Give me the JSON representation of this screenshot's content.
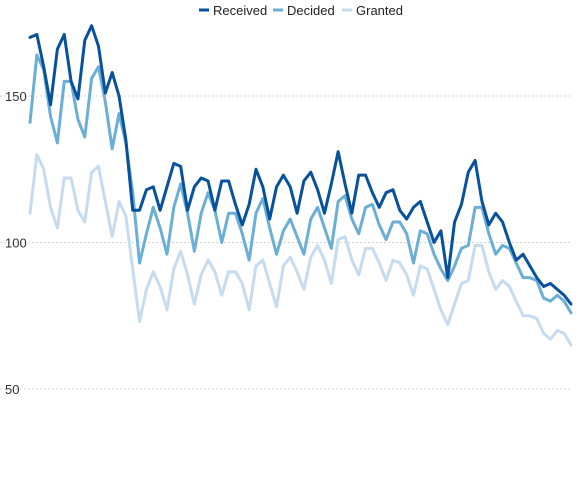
{
  "chart_data": {
    "type": "line",
    "title": "",
    "xlabel": "",
    "ylabel": "",
    "ylim": [
      50,
      180
    ],
    "yticks": [
      50,
      100,
      150
    ],
    "grid": true,
    "legend_position": "top",
    "series": [
      {
        "name": "Received",
        "color": "#08519c",
        "values": [
          170,
          171,
          160,
          147,
          166,
          171,
          155,
          149,
          169,
          174,
          167,
          151,
          158,
          150,
          135,
          111,
          111,
          118,
          119,
          111,
          119,
          127,
          126,
          111,
          119,
          122,
          121,
          111,
          121,
          121,
          113,
          106,
          113,
          125,
          119,
          108,
          119,
          123,
          119,
          110,
          121,
          124,
          118,
          110,
          120,
          131,
          120,
          110,
          123,
          123,
          117,
          112,
          117,
          118,
          111,
          108,
          112,
          114,
          107,
          100,
          104,
          88,
          107,
          113,
          124,
          128,
          114,
          106,
          110,
          107,
          100,
          94,
          96,
          92,
          88,
          85,
          86,
          84,
          82,
          79
        ]
      },
      {
        "name": "Decided",
        "color": "#6baed6",
        "values": [
          141,
          164,
          159,
          143,
          134,
          155,
          155,
          142,
          136,
          156,
          160,
          148,
          132,
          144,
          134,
          117,
          93,
          103,
          112,
          105,
          96,
          112,
          120,
          110,
          97,
          110,
          117,
          111,
          100,
          110,
          110,
          103,
          94,
          110,
          115,
          105,
          96,
          104,
          108,
          102,
          96,
          108,
          112,
          105,
          98,
          114,
          116,
          108,
          103,
          112,
          113,
          106,
          101,
          107,
          107,
          103,
          93,
          104,
          103,
          96,
          91,
          87,
          92,
          98,
          99,
          112,
          112,
          103,
          96,
          99,
          98,
          93,
          88,
          88,
          87,
          81,
          80,
          82,
          80,
          76
        ]
      },
      {
        "name": "Granted",
        "color": "#c6dbef",
        "values": [
          110,
          130,
          125,
          112,
          105,
          122,
          122,
          111,
          107,
          124,
          126,
          114,
          102,
          114,
          109,
          91,
          73,
          84,
          90,
          85,
          77,
          91,
          97,
          89,
          79,
          89,
          94,
          90,
          82,
          90,
          90,
          86,
          77,
          92,
          94,
          86,
          78,
          92,
          95,
          90,
          84,
          95,
          99,
          94,
          86,
          101,
          102,
          94,
          89,
          98,
          98,
          93,
          87,
          94,
          93,
          89,
          82,
          92,
          91,
          84,
          77,
          72,
          79,
          86,
          87,
          99,
          99,
          90,
          84,
          87,
          85,
          80,
          75,
          75,
          74,
          69,
          67,
          70,
          69,
          65
        ]
      }
    ]
  }
}
